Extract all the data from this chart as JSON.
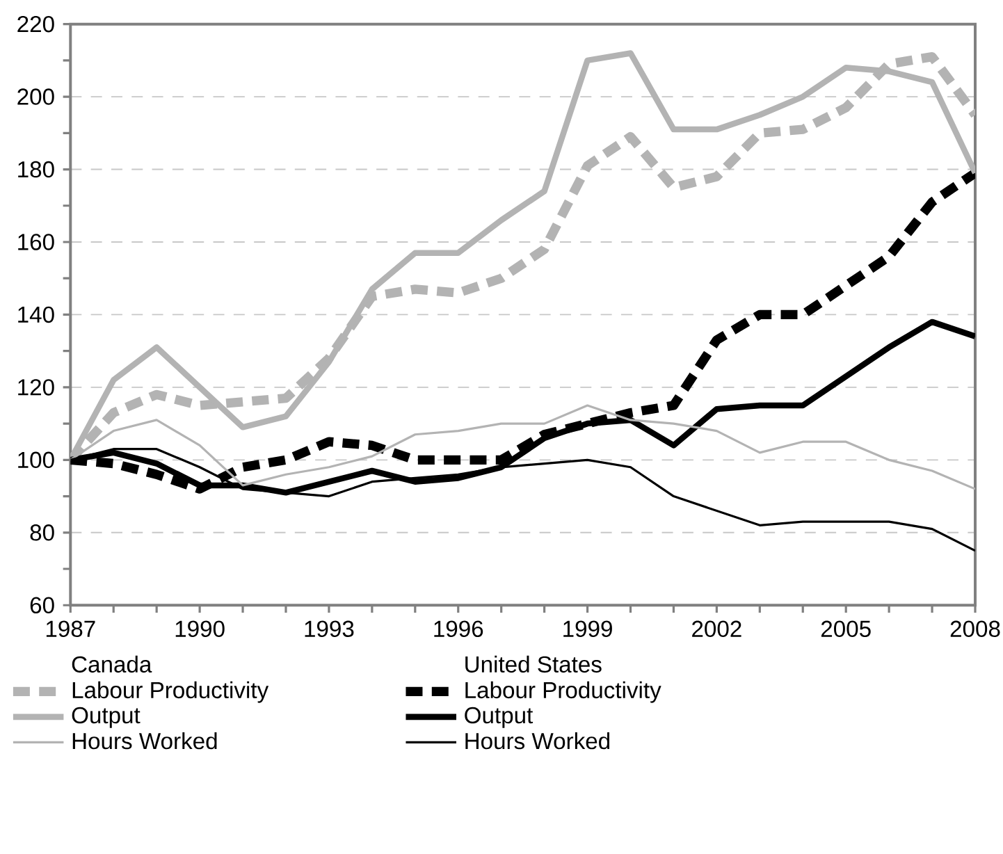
{
  "chart_data": {
    "type": "line",
    "x": [
      1987,
      1988,
      1989,
      1990,
      1991,
      1992,
      1993,
      1994,
      1995,
      1996,
      1997,
      1998,
      1999,
      2000,
      2001,
      2002,
      2003,
      2004,
      2005,
      2006,
      2007,
      2008
    ],
    "xlim": [
      1987,
      2008
    ],
    "xticks": [
      1987,
      1990,
      1993,
      1996,
      1999,
      2002,
      2005,
      2008
    ],
    "ylim": [
      60,
      220
    ],
    "yticks": [
      60,
      80,
      100,
      120,
      140,
      160,
      180,
      200,
      220
    ],
    "grid": "y",
    "legend": "bottom",
    "annotations": [
      "Canada",
      "United States"
    ],
    "series": [
      {
        "name": "Labour Productivity",
        "color": "#b3b3b3",
        "line_style": "dashed",
        "values": [
          100,
          113,
          118,
          115,
          116,
          117,
          128,
          145,
          147,
          146,
          150,
          158,
          181,
          189,
          175,
          178,
          190,
          191,
          197,
          209,
          211,
          195
        ]
      },
      {
        "name": "Output",
        "color": "#b3b3b3",
        "line_style": "solid",
        "values": [
          100,
          122,
          131,
          120,
          109,
          112,
          127,
          147,
          157,
          157,
          166,
          174,
          210,
          212,
          191,
          191,
          195,
          200,
          208,
          207,
          204,
          179
        ]
      },
      {
        "name": "Hours Worked",
        "color": "#b3b3b3",
        "line_style": "solid",
        "values": [
          100,
          108,
          111,
          104,
          93,
          96,
          98,
          101,
          107,
          108,
          110,
          110,
          115,
          111,
          110,
          108,
          102,
          105,
          105,
          100,
          97,
          92
        ]
      },
      {
        "name": "Labour Productivity",
        "color": "#000000",
        "line_style": "dashed",
        "values": [
          100,
          99,
          96,
          92,
          98,
          100,
          105,
          104,
          100,
          100,
          100,
          107,
          110,
          113,
          115,
          133,
          140,
          140,
          148,
          156,
          171,
          179
        ]
      },
      {
        "name": "Output",
        "color": "#000000",
        "line_style": "solid",
        "values": [
          100,
          102,
          99,
          93,
          93,
          91,
          94,
          97,
          94,
          95,
          98,
          106,
          110,
          111,
          104,
          114,
          115,
          115,
          123,
          131,
          138,
          134
        ]
      },
      {
        "name": "Hours Worked",
        "color": "#000000",
        "line_style": "solid",
        "values": [
          100,
          103,
          103,
          98,
          92,
          91,
          90,
          94,
          95,
          96,
          98,
          99,
          100,
          98,
          90,
          86,
          82,
          83,
          83,
          83,
          81,
          75
        ]
      }
    ]
  }
}
